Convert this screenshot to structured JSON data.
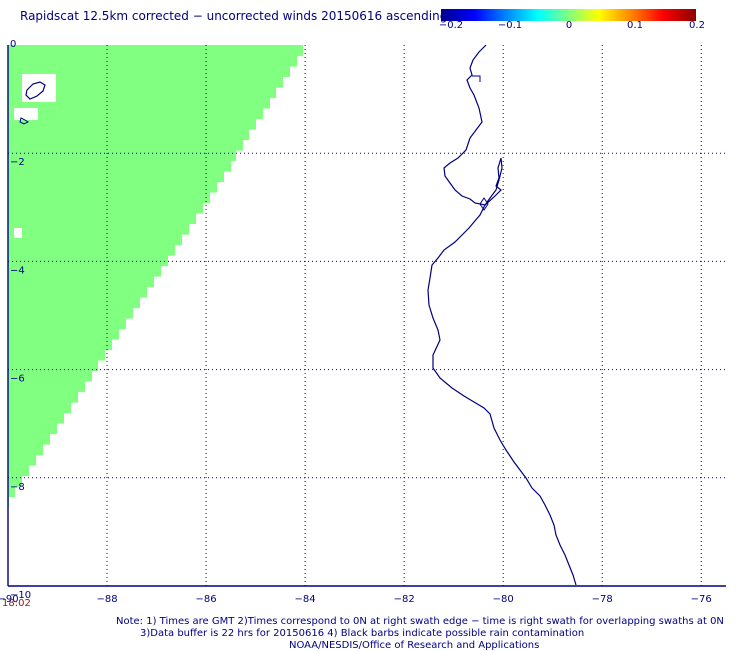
{
  "title": "Rapidscat 12.5km corrected − uncorrected winds 20150616 ascending",
  "colorbar": {
    "ticks": [
      "−0.2",
      "−0.1",
      "0",
      "0.1",
      "0.2"
    ],
    "values": [
      -0.2,
      -0.1,
      0,
      0.1,
      0.2
    ]
  },
  "axes": {
    "lon_ticks": [
      "−90",
      "−88",
      "−86",
      "−84",
      "−82",
      "−80",
      "−78",
      "−76"
    ],
    "lat_ticks": [
      "0",
      "−2",
      "−4",
      "−6",
      "−8",
      "−10"
    ],
    "lon_range": [
      -90,
      -75.5
    ],
    "lat_range": [
      -10,
      0
    ]
  },
  "swath": {
    "color": "#80ff80",
    "value": 0,
    "time_label": "18:02"
  },
  "colors": {
    "text": "#000080",
    "coastline": "#000080",
    "grid": "#000080",
    "time_label": "#8b1a1a"
  },
  "notes": {
    "line1": "Note: 1) Times are GMT 2)Times correspond to 0N at right swath edge − time is right swath for overlapping swaths at 0N",
    "line2": "3)Data buffer is 22 hrs for 20150616 4) Black barbs indicate possible rain contamination",
    "line3": "NOAA/NESDIS/Office of Research and Applications"
  }
}
